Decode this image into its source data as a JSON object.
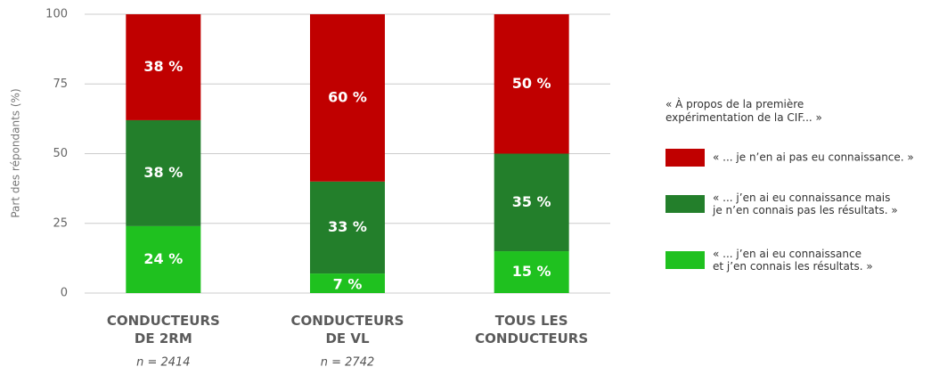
{
  "chart_data": {
    "type": "stacked_bar",
    "ylabel": "Part des répondants (%)",
    "categories": [
      "CONDUCTEURS\nDE 2RM",
      "CONDUCTEURS\nDE VL",
      "TOUS LES\nCONDUCTEURS"
    ],
    "category_notes": [
      "n = 2414",
      "n = 2742",
      ""
    ],
    "legend_title": "« À propos de la première\nexpérimentation de la CIF... »",
    "series": [
      {
        "name": "« ... j’en ai eu connaissance\net j’en connais les résultats. »",
        "color": "#1fc11f",
        "values": [
          24,
          7,
          15
        ],
        "value_labels": [
          "24 %",
          "7 %",
          "15 %"
        ]
      },
      {
        "name": "« ... j’en ai eu connaissance mais\nje n’en connais pas les résultats. »",
        "color": "#237f2b",
        "values": [
          38,
          33,
          35
        ],
        "value_labels": [
          "38 %",
          "33 %",
          "35 %"
        ]
      },
      {
        "name": "« ... je n’en ai pas eu connaissance. »",
        "color": "#c00000",
        "values": [
          38,
          60,
          50
        ],
        "value_labels": [
          "38 %",
          "60 %",
          "50 %"
        ]
      }
    ],
    "ylim": [
      0,
      100
    ],
    "yticks": [
      0,
      25,
      50,
      75,
      100
    ],
    "grid": true,
    "legend": "right"
  }
}
